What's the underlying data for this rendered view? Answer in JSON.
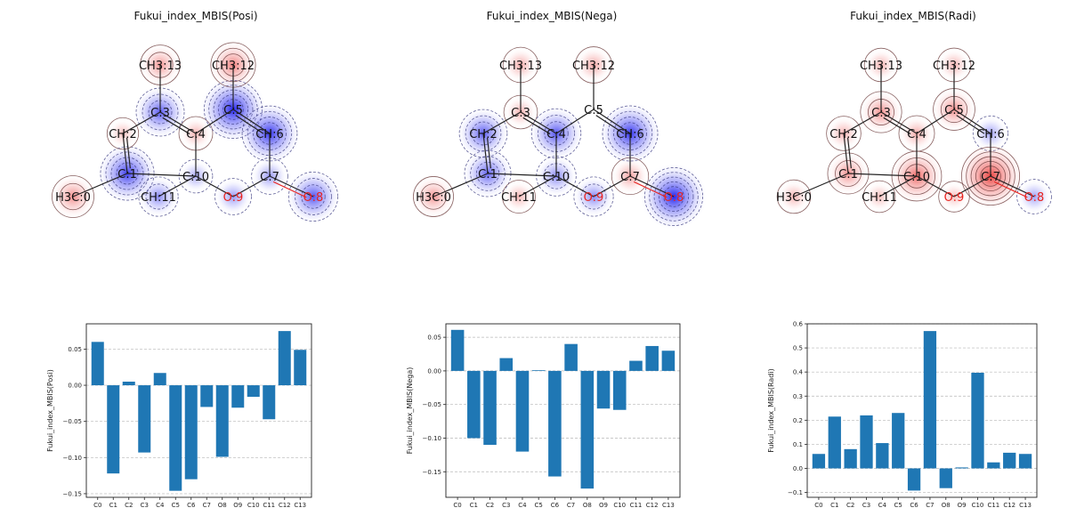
{
  "panels": [
    {
      "title": "Fukui_index_MBIS(Posi)"
    },
    {
      "title": "Fukui_index_MBIS(Nega)"
    },
    {
      "title": "Fukui_index_MBIS(Radi)"
    }
  ],
  "molecule": {
    "atoms": [
      {
        "id": "C0",
        "label": "H3C:0"
      },
      {
        "id": "C1",
        "label": "C:1"
      },
      {
        "id": "C2",
        "label": "CH:2"
      },
      {
        "id": "C3",
        "label": "C:3"
      },
      {
        "id": "C4",
        "label": "C:4"
      },
      {
        "id": "C5",
        "label": "C:5"
      },
      {
        "id": "C6",
        "label": "CH:6"
      },
      {
        "id": "C7",
        "label": "C:7"
      },
      {
        "id": "O8",
        "label": "O:8"
      },
      {
        "id": "O9",
        "label": "O:9"
      },
      {
        "id": "C10",
        "label": "C:10"
      },
      {
        "id": "C11",
        "label": "CH:11"
      },
      {
        "id": "C12",
        "label": "CH3:12"
      },
      {
        "id": "C13",
        "label": "CH3:13"
      }
    ]
  },
  "colors": {
    "bar": "#1f77b4",
    "positive": "#e8231f",
    "negative": "#1a1aee",
    "oxygen": "#e8231f"
  },
  "chart_data": [
    {
      "type": "bar",
      "categories": [
        "C0",
        "C1",
        "C2",
        "C3",
        "C4",
        "C5",
        "C6",
        "C7",
        "O8",
        "O9",
        "C10",
        "C11",
        "C12",
        "C13"
      ],
      "values": [
        0.06,
        -0.122,
        0.005,
        -0.093,
        0.017,
        -0.146,
        -0.13,
        -0.03,
        -0.099,
        -0.031,
        -0.016,
        -0.047,
        0.075,
        0.049
      ],
      "ylabel": "Fukui_index_MBIS(Posi)",
      "ylim": [
        -0.155,
        0.085
      ],
      "yticks": [
        0.05,
        0.0,
        -0.05,
        -0.1,
        -0.15
      ],
      "ytick_labels": [
        "0.05",
        "0.00",
        "−0.05",
        "−0.10",
        "−0.15"
      ],
      "grid": true
    },
    {
      "type": "bar",
      "categories": [
        "C0",
        "C1",
        "C2",
        "C3",
        "C4",
        "C5",
        "C6",
        "C7",
        "O8",
        "O9",
        "C10",
        "C11",
        "C12",
        "C13"
      ],
      "values": [
        0.061,
        -0.1,
        -0.11,
        0.019,
        -0.12,
        0.001,
        -0.157,
        0.04,
        -0.175,
        -0.056,
        -0.058,
        0.015,
        0.037,
        0.03
      ],
      "ylabel": "Fukui_index_MBIS(Nega)",
      "ylim": [
        -0.188,
        0.07
      ],
      "yticks": [
        0.05,
        0.0,
        -0.05,
        -0.1,
        -0.15
      ],
      "ytick_labels": [
        "0.05",
        "0.00",
        "−0.05",
        "−0.10",
        "−0.15"
      ],
      "grid": true
    },
    {
      "type": "bar",
      "categories": [
        "C0",
        "C1",
        "C2",
        "C3",
        "C4",
        "C5",
        "C6",
        "C7",
        "O8",
        "O9",
        "C10",
        "C11",
        "C12",
        "C13"
      ],
      "values": [
        0.06,
        0.215,
        0.08,
        0.22,
        0.105,
        0.23,
        -0.092,
        0.57,
        -0.082,
        0.004,
        0.397,
        0.025,
        0.065,
        0.06
      ],
      "ylabel": "Fukui_index_MBIS(Radi)",
      "ylim": [
        -0.12,
        0.6
      ],
      "yticks": [
        0.6,
        0.5,
        0.4,
        0.3,
        0.2,
        0.1,
        0.0,
        -0.1
      ],
      "ytick_labels": [
        "0.6",
        "0.5",
        "0.4",
        "0.3",
        "0.2",
        "0.1",
        "0.0",
        "−0.1"
      ],
      "grid": true
    }
  ]
}
